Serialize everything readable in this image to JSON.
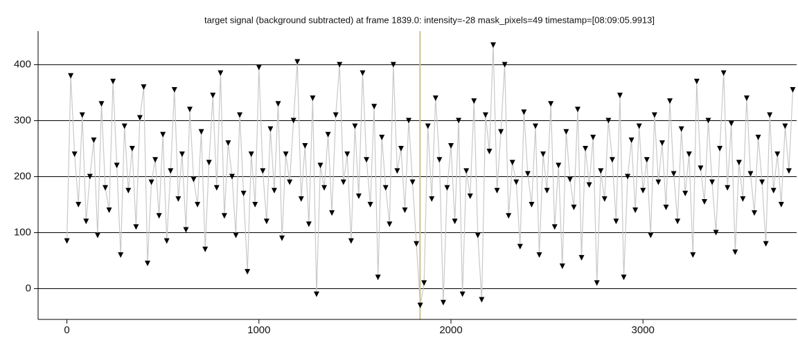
{
  "chart_data": {
    "type": "line",
    "title": "target signal (background subtracted) at frame 1839.0: intensity=-28 mask_pixels=49 timestamp=[08:09:05.9913]",
    "x": [
      0,
      20,
      40,
      60,
      80,
      100,
      120,
      140,
      160,
      180,
      200,
      220,
      240,
      260,
      280,
      300,
      320,
      340,
      360,
      380,
      400,
      420,
      440,
      460,
      480,
      500,
      520,
      540,
      560,
      580,
      600,
      620,
      640,
      660,
      680,
      700,
      720,
      740,
      760,
      780,
      800,
      820,
      840,
      860,
      880,
      900,
      920,
      940,
      960,
      980,
      1000,
      1020,
      1040,
      1060,
      1080,
      1100,
      1120,
      1140,
      1160,
      1180,
      1200,
      1220,
      1240,
      1260,
      1280,
      1300,
      1320,
      1340,
      1360,
      1380,
      1400,
      1420,
      1440,
      1460,
      1480,
      1500,
      1520,
      1540,
      1560,
      1580,
      1600,
      1620,
      1640,
      1660,
      1680,
      1700,
      1720,
      1740,
      1760,
      1780,
      1800,
      1820,
      1840,
      1860,
      1880,
      1900,
      1920,
      1940,
      1960,
      1980,
      2000,
      2020,
      2040,
      2060,
      2080,
      2100,
      2120,
      2140,
      2160,
      2180,
      2200,
      2220,
      2240,
      2260,
      2280,
      2300,
      2320,
      2340,
      2360,
      2380,
      2400,
      2420,
      2440,
      2460,
      2480,
      2500,
      2520,
      2540,
      2560,
      2580,
      2600,
      2620,
      2640,
      2660,
      2680,
      2700,
      2720,
      2740,
      2760,
      2780,
      2800,
      2820,
      2840,
      2860,
      2880,
      2900,
      2920,
      2940,
      2960,
      2980,
      3000,
      3020,
      3040,
      3060,
      3080,
      3100,
      3120,
      3140,
      3160,
      3180,
      3200,
      3220,
      3240,
      3260,
      3280,
      3300,
      3320,
      3340,
      3360,
      3380,
      3400,
      3420,
      3440,
      3460,
      3480,
      3500,
      3520,
      3540,
      3560,
      3580,
      3600,
      3620,
      3640,
      3660,
      3680,
      3700,
      3720,
      3740,
      3760,
      3780
    ],
    "values": [
      85,
      380,
      240,
      150,
      310,
      120,
      200,
      265,
      95,
      330,
      180,
      140,
      370,
      220,
      60,
      290,
      175,
      250,
      110,
      305,
      360,
      45,
      190,
      230,
      130,
      275,
      85,
      210,
      355,
      160,
      240,
      105,
      320,
      195,
      150,
      280,
      70,
      225,
      345,
      180,
      385,
      130,
      260,
      200,
      95,
      310,
      170,
      30,
      240,
      150,
      395,
      210,
      120,
      285,
      175,
      330,
      90,
      240,
      190,
      300,
      405,
      160,
      255,
      115,
      340,
      -10,
      220,
      180,
      275,
      135,
      310,
      400,
      190,
      240,
      85,
      290,
      165,
      385,
      230,
      150,
      325,
      20,
      270,
      180,
      115,
      400,
      210,
      250,
      140,
      300,
      190,
      80,
      -30,
      10,
      290,
      160,
      340,
      230,
      -25,
      180,
      255,
      120,
      300,
      -10,
      210,
      165,
      335,
      95,
      -20,
      310,
      245,
      435,
      175,
      280,
      400,
      130,
      225,
      190,
      75,
      315,
      205,
      150,
      290,
      60,
      240,
      175,
      330,
      110,
      220,
      40,
      280,
      195,
      145,
      320,
      55,
      250,
      185,
      270,
      10,
      210,
      160,
      300,
      230,
      120,
      345,
      20,
      200,
      265,
      140,
      290,
      175,
      230,
      95,
      310,
      190,
      260,
      145,
      335,
      205,
      120,
      285,
      170,
      240,
      60,
      370,
      215,
      155,
      300,
      190,
      100,
      250,
      385,
      180,
      295,
      65,
      225,
      160,
      340,
      205,
      135,
      270,
      190,
      80,
      310,
      175,
      240,
      150,
      290,
      210,
      355
    ],
    "line_color": "#c8c8c8",
    "marker_color": "#000000",
    "cursor_x": 1839,
    "cursor_color": "#cbc38e",
    "xlim": [
      -150,
      3800
    ],
    "ylim": [
      -55,
      460
    ],
    "xticks": [
      0,
      1000,
      2000,
      3000
    ],
    "yticks": [
      0,
      100,
      200,
      300,
      400
    ],
    "grid": true
  }
}
